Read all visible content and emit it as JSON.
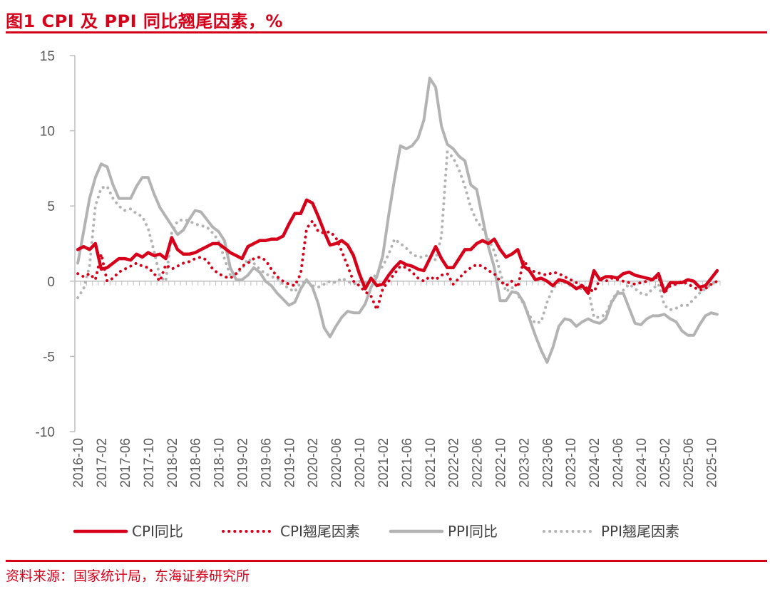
{
  "header": {
    "title": "图1  CPI 及 PPI 同比翘尾因素，%"
  },
  "footer": {
    "source": "资料来源：国家统计局，东海证券研究所"
  },
  "chart_data": {
    "type": "line",
    "title": "图1  CPI 及 PPI 同比翘尾因素，%",
    "ylim": [
      -10,
      15
    ],
    "yticks": [
      15,
      10,
      5,
      0,
      -5,
      -10
    ],
    "x": [
      "2016-10",
      "2016-11",
      "2016-12",
      "2017-01",
      "2017-02",
      "2017-03",
      "2017-04",
      "2017-05",
      "2017-06",
      "2017-07",
      "2017-08",
      "2017-09",
      "2017-10",
      "2017-11",
      "2017-12",
      "2018-01",
      "2018-02",
      "2018-03",
      "2018-04",
      "2018-05",
      "2018-06",
      "2018-07",
      "2018-08",
      "2018-09",
      "2018-10",
      "2018-11",
      "2018-12",
      "2019-01",
      "2019-02",
      "2019-03",
      "2019-04",
      "2019-05",
      "2019-06",
      "2019-07",
      "2019-08",
      "2019-09",
      "2019-10",
      "2019-11",
      "2019-12",
      "2020-01",
      "2020-02",
      "2020-03",
      "2020-04",
      "2020-05",
      "2020-06",
      "2020-07",
      "2020-08",
      "2020-09",
      "2020-10",
      "2020-11",
      "2020-12",
      "2021-01",
      "2021-02",
      "2021-03",
      "2021-04",
      "2021-05",
      "2021-06",
      "2021-07",
      "2021-08",
      "2021-09",
      "2021-10",
      "2021-11",
      "2021-12",
      "2022-01",
      "2022-02",
      "2022-03",
      "2022-04",
      "2022-05",
      "2022-06",
      "2022-07",
      "2022-08",
      "2022-09",
      "2022-10",
      "2022-11",
      "2022-12",
      "2023-01",
      "2023-02",
      "2023-03",
      "2023-04",
      "2023-05",
      "2023-06",
      "2023-07",
      "2023-08",
      "2023-09",
      "2023-10",
      "2023-11",
      "2023-12",
      "2024-01",
      "2024-02",
      "2024-03",
      "2024-04",
      "2024-05",
      "2024-06",
      "2024-07",
      "2024-08",
      "2024-09",
      "2024-10",
      "2024-11",
      "2024-12",
      "2025-01",
      "2025-02",
      "2025-03",
      "2025-04",
      "2025-05",
      "2025-06",
      "2025-07",
      "2025-08",
      "2025-09",
      "2025-10",
      "2025-11"
    ],
    "xticklabels": [
      "2016-10",
      "2017-02",
      "2017-06",
      "2017-10",
      "2018-02",
      "2018-06",
      "2018-10",
      "2019-02",
      "2019-06",
      "2019-10",
      "2020-02",
      "2020-06",
      "2020-10",
      "2021-02",
      "2021-06",
      "2021-10",
      "2022-02",
      "2022-06",
      "2022-10",
      "2023-02",
      "2023-06",
      "2023-10",
      "2024-02",
      "2024-06",
      "2024-10",
      "2025-02",
      "2025-06",
      "2025-10"
    ],
    "series": [
      {
        "name": "CPI同比",
        "style": "solid",
        "color": "#d7001a",
        "values": [
          2.1,
          2.3,
          2.1,
          2.5,
          0.8,
          0.9,
          1.2,
          1.5,
          1.5,
          1.4,
          1.8,
          1.6,
          1.9,
          1.7,
          1.8,
          1.5,
          2.9,
          2.1,
          1.8,
          1.8,
          1.9,
          2.1,
          2.3,
          2.5,
          2.5,
          2.2,
          1.9,
          1.7,
          1.5,
          2.3,
          2.5,
          2.7,
          2.7,
          2.8,
          2.8,
          3.0,
          3.8,
          4.5,
          4.5,
          5.4,
          5.2,
          4.3,
          3.3,
          2.4,
          2.5,
          2.7,
          2.4,
          1.7,
          0.5,
          -0.5,
          0.2,
          -0.3,
          -0.2,
          0.4,
          0.9,
          1.3,
          1.1,
          1.0,
          0.8,
          0.7,
          1.5,
          2.3,
          1.5,
          0.9,
          0.9,
          1.5,
          2.1,
          2.1,
          2.5,
          2.7,
          2.5,
          2.8,
          2.1,
          1.6,
          1.8,
          2.1,
          1.0,
          0.7,
          0.1,
          0.2,
          0.0,
          -0.3,
          0.1,
          0.0,
          -0.2,
          -0.5,
          -0.3,
          -0.8,
          0.7,
          0.1,
          0.3,
          0.3,
          0.2,
          0.5,
          0.6,
          0.4,
          0.3,
          0.2,
          0.1,
          0.5,
          -0.7,
          -0.1,
          -0.1,
          -0.1,
          0.1,
          0.0,
          -0.4,
          -0.3,
          0.2,
          0.7
        ]
      },
      {
        "name": "CPI翘尾因素",
        "style": "dotted",
        "color": "#d7001a",
        "values": [
          0.5,
          0.3,
          0.5,
          0.1,
          1.8,
          0.0,
          0.2,
          0.6,
          0.8,
          1.0,
          1.2,
          1.0,
          0.9,
          0.5,
          0.0,
          1.1,
          0.8,
          1.0,
          1.2,
          1.3,
          1.5,
          1.6,
          1.4,
          0.8,
          0.5,
          0.3,
          0.2,
          0.5,
          1.0,
          1.2,
          1.5,
          1.6,
          1.4,
          0.8,
          0.3,
          0.0,
          -0.2,
          -0.3,
          0.5,
          3.5,
          4.0,
          3.3,
          3.2,
          3.3,
          2.9,
          2.0,
          1.0,
          0.0,
          -0.3,
          -0.7,
          -1.0,
          -1.9,
          -0.5,
          0.0,
          0.5,
          1.0,
          0.9,
          0.6,
          0.2,
          0.0,
          0.3,
          0.1,
          0.4,
          0.5,
          -0.2,
          0.2,
          0.6,
          0.9,
          1.1,
          1.0,
          0.7,
          0.5,
          0.0,
          -0.3,
          0.0,
          -0.4,
          1.4,
          0.8,
          0.6,
          0.5,
          0.4,
          0.6,
          0.5,
          0.3,
          0.1,
          -0.1,
          -0.3,
          -0.5,
          -0.7,
          0.1,
          0.0,
          0.2,
          0.1,
          0.0,
          -0.1,
          -0.2,
          -0.1,
          0.0,
          0.1,
          0.3,
          -0.8,
          -0.3,
          -0.2,
          0.0,
          -0.2,
          -0.4,
          -0.6,
          -0.5,
          -0.2,
          0.0
        ]
      },
      {
        "name": "PPI同比",
        "style": "solid",
        "color": "#b3b3b3",
        "values": [
          1.2,
          3.3,
          5.5,
          6.9,
          7.8,
          7.6,
          6.4,
          5.5,
          5.5,
          5.5,
          6.3,
          6.9,
          6.9,
          5.8,
          4.9,
          4.3,
          3.7,
          3.1,
          3.4,
          4.1,
          4.7,
          4.6,
          4.1,
          3.6,
          3.3,
          2.7,
          0.9,
          0.1,
          0.1,
          0.4,
          0.9,
          0.6,
          0.0,
          -0.3,
          -0.8,
          -1.2,
          -1.6,
          -1.4,
          -0.5,
          0.1,
          -0.4,
          -1.5,
          -3.1,
          -3.7,
          -3.0,
          -2.4,
          -2.0,
          -2.1,
          -2.1,
          -1.5,
          -0.4,
          0.3,
          1.7,
          4.4,
          6.8,
          9.0,
          8.8,
          9.0,
          9.5,
          10.7,
          13.5,
          12.9,
          10.3,
          9.1,
          8.8,
          8.3,
          8.0,
          6.4,
          6.1,
          4.2,
          2.3,
          0.9,
          -1.3,
          -1.3,
          -0.7,
          -0.8,
          -1.4,
          -2.5,
          -3.6,
          -4.6,
          -5.4,
          -4.4,
          -3.0,
          -2.5,
          -2.6,
          -3.0,
          -2.7,
          -2.5,
          -2.7,
          -2.8,
          -2.5,
          -1.4,
          -0.8,
          -0.8,
          -1.8,
          -2.8,
          -2.9,
          -2.5,
          -2.3,
          -2.3,
          -2.2,
          -2.5,
          -2.7,
          -3.3,
          -3.6,
          -3.6,
          -2.9,
          -2.3,
          -2.1,
          -2.2
        ]
      },
      {
        "name": "PPI翘尾因素",
        "style": "dotted",
        "color": "#b3b3b3",
        "values": [
          -1.1,
          -0.5,
          1.0,
          5.0,
          6.2,
          6.3,
          5.5,
          5.0,
          4.7,
          4.8,
          4.5,
          4.3,
          3.5,
          2.0,
          0.3,
          0.0,
          3.2,
          4.0,
          4.1,
          4.0,
          3.8,
          3.7,
          3.6,
          3.2,
          2.7,
          1.5,
          0.4,
          0.5,
          0.8,
          1.5,
          1.2,
          0.8,
          0.5,
          0.3,
          0.2,
          -0.2,
          -0.5,
          -0.7,
          -0.1,
          0.0,
          -0.3,
          -0.4,
          -0.2,
          0.0,
          -0.1,
          0.2,
          0.0,
          -0.2,
          0.0,
          -0.1,
          0.1,
          0.5,
          1.0,
          1.8,
          2.8,
          2.5,
          2.2,
          1.8,
          1.6,
          1.6,
          1.8,
          1.4,
          3.0,
          8.6,
          8.2,
          7.4,
          6.3,
          4.9,
          4.0,
          3.5,
          2.8,
          2.0,
          0.6,
          -0.7,
          -0.4,
          -0.9,
          -1.5,
          -2.3,
          -2.8,
          -2.7,
          -1.4,
          -0.5,
          -0.1,
          -0.1,
          -0.3,
          -0.5,
          -0.5,
          -0.5,
          -2.4,
          -2.4,
          -2.2,
          -1.3,
          -0.7,
          -0.6,
          -0.2,
          -0.5,
          -0.8,
          -0.9,
          -0.5,
          -0.2,
          -1.6,
          -1.9,
          -1.8,
          -1.6,
          -1.6,
          -1.2,
          -0.8,
          -0.5,
          -0.2,
          0.0
        ]
      }
    ]
  }
}
